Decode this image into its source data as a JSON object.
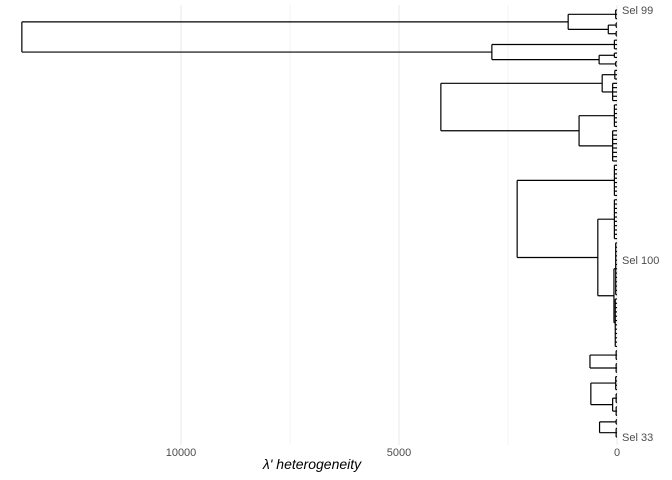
{
  "chart_data": {
    "type": "dendrogram",
    "orientation": "horizontal, leaves on right, height axis reversed",
    "xlabel": "λ'  heterogeneity",
    "xlim": [
      13650,
      0
    ],
    "xticks": [
      10000,
      5000,
      0
    ],
    "xtick_labels": [
      "10000",
      "5000",
      "0"
    ],
    "grid": "vertical major and minor",
    "line_color": "#000000",
    "grid_color": "#ebebeb",
    "visible_leaf_labels": [
      {
        "leaf_index": 0,
        "label": "Sel 99"
      },
      {
        "leaf_index": 58,
        "label": "Sel 100"
      },
      {
        "leaf_index": 99,
        "label": "Sel 33"
      }
    ],
    "leaf_count": 100,
    "trees": [
      {
        "h": 13650,
        "c": [
          {
            "h": 1120,
            "c": [
              {
                "h": 30,
                "n": 3
              },
              {
                "h": 200,
                "c": [
                  {
                    "h": 20,
                    "n": 2
                  },
                  {
                    "h": 20,
                    "n": 2
                  }
                ]
              }
            ]
          },
          {
            "h": 2870,
            "c": [
              {
                "h": 60,
                "n": 3
              },
              {
                "h": 410,
                "c": [
                  {
                    "h": 60,
                    "n": 2
                  },
                  {
                    "h": 30,
                    "n": 2
                  }
                ]
              }
            ]
          }
        ]
      },
      {
        "h": 4040,
        "c": [
          {
            "h": 340,
            "c": [
              {
                "h": 50,
                "n": 3
              },
              {
                "h": 100,
                "n": 5
              }
            ]
          },
          {
            "h": 870,
            "c": [
              {
                "h": 60,
                "n": 6
              },
              {
                "h": 100,
                "n": 8
              }
            ]
          }
        ]
      },
      {
        "h": 2290,
        "c": [
          {
            "h": 60,
            "n": 8
          },
          {
            "h": 440,
            "c": [
              {
                "h": 60,
                "n": 10
              },
              {
                "h": 70,
                "c": [
                  {
                    "h": 30,
                    "n": 13
                  },
                  {
                    "h": 40,
                    "n": 12
                  }
                ]
              }
            ]
          }
        ]
      },
      {
        "h": 620,
        "c": [
          {
            "h": 20,
            "n": 3
          },
          {
            "h": 20,
            "n": 3
          }
        ]
      },
      {
        "h": 600,
        "c": [
          {
            "h": 30,
            "n": 4
          },
          {
            "h": 100,
            "c": [
              {
                "h": 20,
                "n": 3
              },
              {
                "h": 20,
                "n": 3
              }
            ]
          }
        ]
      },
      {
        "h": 400,
        "c": [
          {
            "h": 20,
            "n": 2
          },
          {
            "h": 20,
            "n": 3
          }
        ]
      }
    ]
  }
}
